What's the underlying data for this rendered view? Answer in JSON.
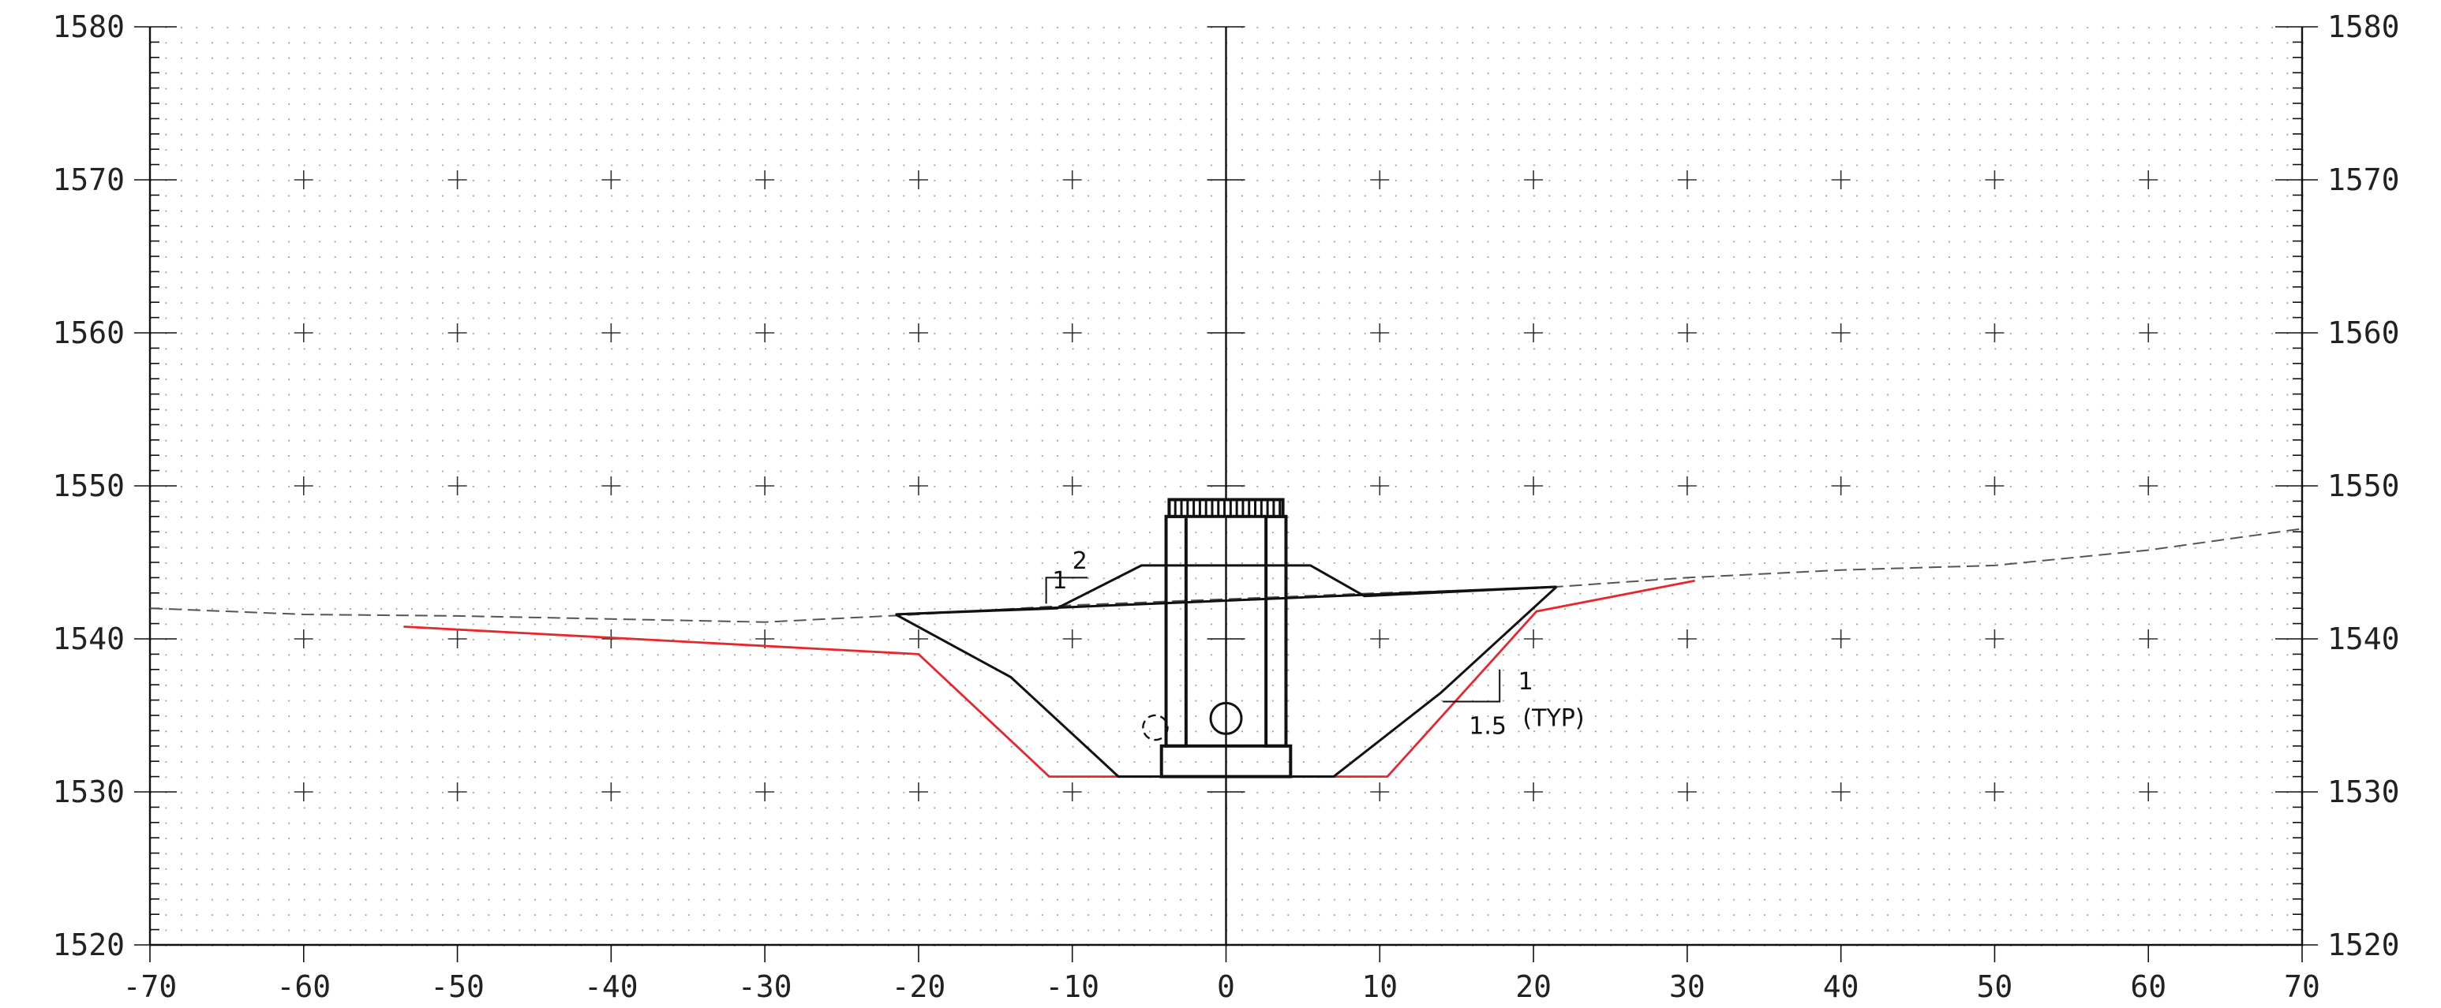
{
  "chart_data": {
    "type": "line",
    "title": "",
    "xlabel": "",
    "ylabel": "",
    "xlim": [
      -70,
      70
    ],
    "ylim": [
      1520,
      1580
    ],
    "x_ticks": [
      "-70",
      "-60",
      "-50",
      "-40",
      "-30",
      "-20",
      "-10",
      "0",
      "10",
      "20",
      "30",
      "40",
      "50",
      "60",
      "70"
    ],
    "y_ticks_left": [
      "1580",
      "1570",
      "1560",
      "1550",
      "1540",
      "1530",
      "1520"
    ],
    "y_ticks_right": [
      "1580",
      "1570",
      "1560",
      "1550",
      "1540",
      "1530",
      "1520"
    ],
    "grid": "dotted",
    "colors": {
      "excavation": "#e8262b",
      "structure": "#111111",
      "ground": "#555555",
      "grid": "#9a9a9a"
    },
    "series": [
      {
        "role": "ground",
        "style": "dashed",
        "points": [
          [
            -70,
            1542.0
          ],
          [
            -60,
            1541.6
          ],
          [
            -50,
            1541.5
          ],
          [
            -40,
            1541.3
          ],
          [
            -30,
            1541.1
          ],
          [
            -20,
            1541.6
          ],
          [
            -10,
            1542.2
          ],
          [
            0,
            1542.6
          ],
          [
            10,
            1543.0
          ],
          [
            20,
            1543.3
          ],
          [
            30,
            1544.0
          ],
          [
            40,
            1544.5
          ],
          [
            50,
            1544.8
          ],
          [
            60,
            1545.8
          ],
          [
            70,
            1547.2
          ]
        ]
      },
      {
        "role": "excavation",
        "style": "solid",
        "points": [
          [
            -53.5,
            1540.8
          ],
          [
            -20,
            1539.0
          ],
          [
            -11.5,
            1531.0
          ],
          [
            10.5,
            1531.0
          ],
          [
            20.2,
            1541.8
          ],
          [
            30.5,
            1543.8
          ]
        ]
      },
      {
        "role": "backfill",
        "style": "solid",
        "points": [
          [
            -21.5,
            1541.6
          ],
          [
            -14,
            1537.5
          ],
          [
            -7,
            1531.0
          ],
          [
            7,
            1531.0
          ],
          [
            14,
            1536.5
          ],
          [
            21.5,
            1543.4
          ]
        ]
      },
      {
        "role": "finished-grade",
        "style": "solid",
        "points": [
          [
            -21.5,
            1541.6
          ],
          [
            -11,
            1542.0
          ],
          [
            -5.5,
            1544.8
          ],
          [
            -3.5,
            1544.8
          ],
          [
            3.5,
            1544.8
          ],
          [
            5.5,
            1544.8
          ],
          [
            9,
            1542.8
          ],
          [
            21.5,
            1543.4
          ]
        ]
      },
      {
        "role": "grade-line",
        "style": "solid",
        "points": [
          [
            -21.5,
            1541.6
          ],
          [
            21.5,
            1543.4
          ]
        ]
      }
    ],
    "structure": {
      "pad": {
        "x": [
          -4.2,
          4.2
        ],
        "y": [
          1531.0,
          1533.0
        ]
      },
      "walls": {
        "x_outer": [
          -3.9,
          3.9
        ],
        "x_inner": [
          -2.6,
          2.6
        ],
        "y": [
          1533.0,
          1548.0
        ]
      },
      "cap": {
        "x": [
          -3.7,
          3.7
        ],
        "y": [
          1548.0,
          1549.1
        ]
      },
      "pipe": {
        "x": 0,
        "y": 1534.8,
        "diameter": 2.0
      },
      "side_pipe": {
        "x": -4.6,
        "y": 1534.2,
        "diameter": 1.6
      }
    },
    "annotations": [
      {
        "text": "2",
        "x": -10.0,
        "y": 1544.6
      },
      {
        "text": "1",
        "x": -11.3,
        "y": 1543.3
      },
      {
        "text": "1",
        "x": 19.0,
        "y": 1536.7
      },
      {
        "text": "1.5",
        "x": 15.8,
        "y": 1533.8
      },
      {
        "text": "(TYP)",
        "x": 19.3,
        "y": 1534.3
      }
    ]
  }
}
